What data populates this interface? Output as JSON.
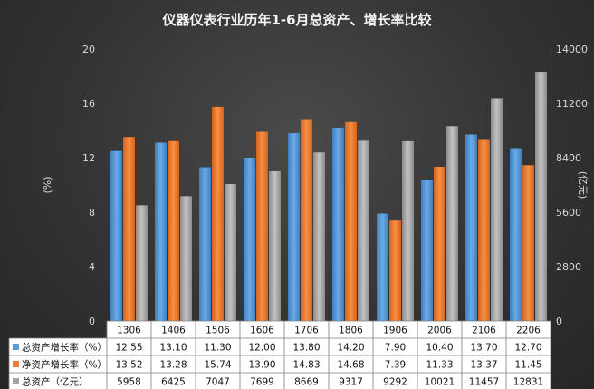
{
  "chart_data": {
    "type": "bar",
    "title": "仪器仪表行业历年1-6月总资产、增长率比较",
    "categories": [
      "1306",
      "1406",
      "1506",
      "1606",
      "1706",
      "1806",
      "1906",
      "2006",
      "2106",
      "2206"
    ],
    "ylabel_left": "(%)",
    "ylabel_right": "(亿元)",
    "ylim_left": [
      0,
      20
    ],
    "ylim_right": [
      0,
      14000
    ],
    "yticks_left": [
      "0",
      "4",
      "8",
      "12",
      "16",
      "20"
    ],
    "yticks_right": [
      "0",
      "2800",
      "5600",
      "8400",
      "11200",
      "14000"
    ],
    "grid": false,
    "legend": "bottom-table",
    "series": [
      {
        "name": "总资产增长率（%）",
        "axis": "left",
        "color": "#5b9bd5",
        "values": [
          12.55,
          13.1,
          11.3,
          12.0,
          13.8,
          14.2,
          7.9,
          10.4,
          13.7,
          12.7
        ],
        "labels": [
          "12.55",
          "13.10",
          "11.30",
          "12.00",
          "13.80",
          "14.20",
          "7.90",
          "10.40",
          "13.70",
          "12.70"
        ]
      },
      {
        "name": "净资产增长率（%）",
        "axis": "left",
        "color": "#ed7d31",
        "values": [
          13.52,
          13.28,
          15.74,
          13.9,
          14.83,
          14.68,
          7.39,
          11.33,
          13.37,
          11.45
        ],
        "labels": [
          "13.52",
          "13.28",
          "15.74",
          "13.90",
          "14.83",
          "14.68",
          "7.39",
          "11.33",
          "13.37",
          "11.45"
        ]
      },
      {
        "name": "总资产（亿元）",
        "axis": "right",
        "color": "#a5a5a5",
        "values": [
          5958,
          6425,
          7047,
          7699,
          8669,
          9317,
          9292,
          10021,
          11457,
          12831
        ],
        "labels": [
          "5958",
          "6425",
          "7047",
          "7699",
          "8669",
          "9317",
          "9292",
          "10021",
          "11457",
          "12831"
        ]
      }
    ]
  }
}
